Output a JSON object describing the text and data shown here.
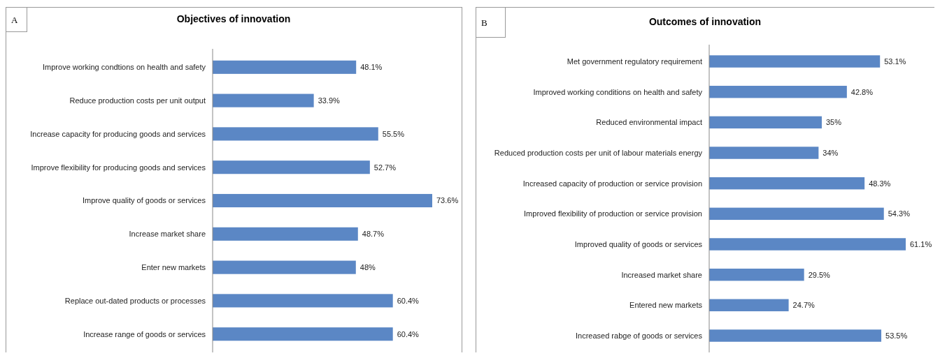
{
  "chart_data": [
    {
      "type": "bar",
      "orientation": "horizontal",
      "title": "Objectives of innovation",
      "annotations": [
        "A"
      ],
      "data_labels": true,
      "categories": [
        "Improve working condtions on health and safety",
        "Reduce production costs per unit output",
        "Increase capacity for producing goods and services",
        "Improve flexibility for producing goods and services",
        "Improve quality of goods or services",
        "Increase market share",
        "Enter new markets",
        "Replace out-dated products or processes",
        "Increase range of goods or services"
      ],
      "values": [
        48.1,
        33.9,
        55.5,
        52.7,
        73.6,
        48.7,
        48,
        60.4,
        60.4
      ],
      "value_labels": [
        "48.1%",
        "33.9%",
        "55.5%",
        "52.7%",
        "73.6%",
        "48.7%",
        "48%",
        "60.4%",
        "60.4%"
      ],
      "color": "#5b87c5"
    },
    {
      "type": "bar",
      "orientation": "horizontal",
      "title": "Outcomes of innovation",
      "annotations": [
        "B"
      ],
      "data_labels": true,
      "categories": [
        "Met government regulatory requirement",
        "Improved working conditions on health and safety",
        "Reduced environmental impact",
        "Reduced production costs per unit of labour materials energy",
        "Increased capacity of production or service provision",
        "Improved flexibility of production or service provision",
        "Improved quality of goods or services",
        "Increased market share",
        "Entered new markets",
        "Increased rabge of goods or services"
      ],
      "values": [
        53.1,
        42.8,
        35,
        34,
        48.3,
        54.3,
        61.1,
        29.5,
        24.7,
        53.5
      ],
      "value_labels": [
        "53.1%",
        "42.8%",
        "35%",
        "34%",
        "48.3%",
        "54.3%",
        "61.1%",
        "29.5%",
        "24.7%",
        "53.5%"
      ],
      "color": "#5b87c5"
    }
  ]
}
